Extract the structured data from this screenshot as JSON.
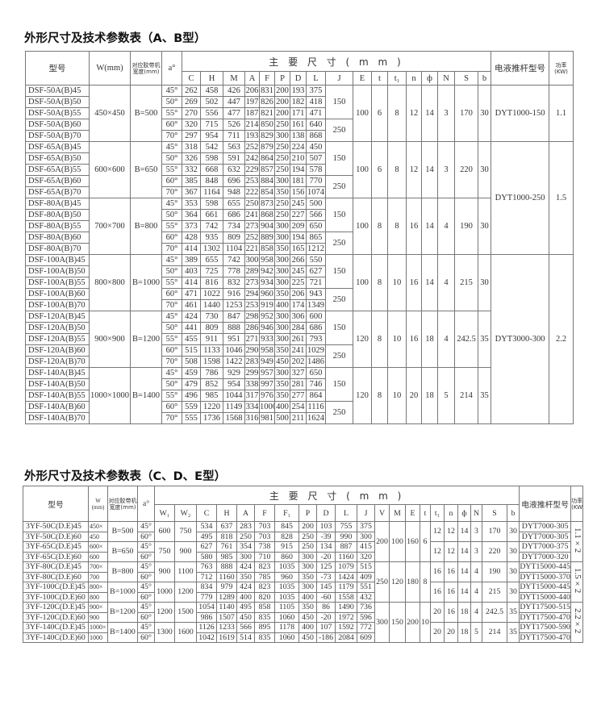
{
  "table1": {
    "title": "外形尺寸及技术参数表（A、B型）",
    "headers": {
      "model": "型号",
      "w": "W(mm)",
      "belt": "对应胶带机宽度(mm)",
      "angle": "a°",
      "main_dims": "主 要 尺 寸 ( m m )",
      "cols": [
        "C",
        "H",
        "M",
        "A",
        "F",
        "P",
        "D",
        "L",
        "J",
        "E",
        "t",
        "t₁",
        "n",
        "ф",
        "N",
        "S",
        "b"
      ],
      "pusher": "电液推杆型号",
      "power": "功率(KW)"
    },
    "groups": [
      {
        "w": "450×450",
        "belt": "B=500",
        "j": [
          "150",
          "250"
        ],
        "tail": [
          "100",
          "6",
          "8",
          "12",
          "14",
          "3",
          "170",
          "30"
        ],
        "rows": [
          [
            "DSF-50A(B)45",
            "45°",
            "262",
            "458",
            "426",
            "206",
            "831",
            "200",
            "193",
            "375"
          ],
          [
            "DSF-50A(B)50",
            "50°",
            "269",
            "502",
            "447",
            "197",
            "826",
            "200",
            "182",
            "418"
          ],
          [
            "DSF-50A(B)55",
            "55°",
            "270",
            "556",
            "477",
            "187",
            "821",
            "200",
            "171",
            "471"
          ],
          [
            "DSF-50A(B)60",
            "60°",
            "320",
            "715",
            "526",
            "214",
            "850",
            "250",
            "161",
            "640"
          ],
          [
            "DSF-50A(B)70",
            "70°",
            "297",
            "954",
            "711",
            "193",
            "829",
            "300",
            "138",
            "868"
          ]
        ]
      },
      {
        "w": "600×600",
        "belt": "B=650",
        "j": [
          "150",
          "250"
        ],
        "tail": [
          "100",
          "6",
          "8",
          "12",
          "14",
          "3",
          "220",
          "30"
        ],
        "rows": [
          [
            "DSF-65A(B)45",
            "45°",
            "318",
            "542",
            "563",
            "252",
            "879",
            "250",
            "224",
            "450"
          ],
          [
            "DSF-65A(B)50",
            "50°",
            "326",
            "598",
            "591",
            "242",
            "864",
            "250",
            "210",
            "507"
          ],
          [
            "DSF-65A(B)55",
            "55°",
            "332",
            "668",
            "632",
            "229",
            "857",
            "250",
            "194",
            "578"
          ],
          [
            "DSF-65A(B)60",
            "60°",
            "385",
            "848",
            "696",
            "253",
            "884",
            "300",
            "181",
            "770"
          ],
          [
            "DSF-65A(B)70",
            "70°",
            "367",
            "1164",
            "948",
            "222",
            "854",
            "350",
            "156",
            "1074"
          ]
        ]
      },
      {
        "w": "700×700",
        "belt": "B=800",
        "j": [
          "150",
          "250"
        ],
        "tail": [
          "100",
          "8",
          "8",
          "16",
          "14",
          "4",
          "190",
          "30"
        ],
        "rows": [
          [
            "DSF-80A(B)45",
            "45°",
            "353",
            "598",
            "655",
            "250",
            "873",
            "250",
            "245",
            "500"
          ],
          [
            "DSF-80A(B)50",
            "50°",
            "364",
            "661",
            "686",
            "241",
            "868",
            "250",
            "227",
            "566"
          ],
          [
            "DSF-80A(B)55",
            "55°",
            "373",
            "742",
            "734",
            "273",
            "904",
            "300",
            "209",
            "650"
          ],
          [
            "DSF-80A(B)60",
            "60°",
            "428",
            "935",
            "809",
            "252",
            "889",
            "300",
            "194",
            "865"
          ],
          [
            "DSF-80A(B)70",
            "70°",
            "414",
            "1302",
            "1104",
            "221",
            "858",
            "350",
            "165",
            "1212"
          ]
        ]
      },
      {
        "w": "800×800",
        "belt": "B=1000",
        "j": [
          "150",
          "250"
        ],
        "tail": [
          "100",
          "8",
          "10",
          "16",
          "14",
          "4",
          "215",
          "30"
        ],
        "rows": [
          [
            "DSF-100A(B)45",
            "45°",
            "389",
            "655",
            "742",
            "300",
            "958",
            "300",
            "266",
            "550"
          ],
          [
            "DSF-100A(B)50",
            "50°",
            "403",
            "725",
            "778",
            "289",
            "942",
            "300",
            "245",
            "627"
          ],
          [
            "DSF-100A(B)55",
            "55°",
            "414",
            "816",
            "832",
            "273",
            "934",
            "300",
            "225",
            "721"
          ],
          [
            "DSF-100A(B)60",
            "60°",
            "471",
            "1022",
            "916",
            "294",
            "960",
            "350",
            "206",
            "943"
          ],
          [
            "DSF-100A(B)70",
            "70°",
            "461",
            "1440",
            "1253",
            "253",
            "919",
            "400",
            "174",
            "1349"
          ]
        ]
      },
      {
        "w": "900×900",
        "belt": "B=1200",
        "j": [
          "150",
          "250"
        ],
        "tail": [
          "120",
          "8",
          "10",
          "16",
          "18",
          "4",
          "242.5",
          "35"
        ],
        "rows": [
          [
            "DSF-120A(B)45",
            "45°",
            "424",
            "730",
            "847",
            "298",
            "952",
            "300",
            "306",
            "600"
          ],
          [
            "DSF-120A(B)50",
            "50°",
            "441",
            "809",
            "888",
            "286",
            "946",
            "300",
            "284",
            "686"
          ],
          [
            "DSF-120A(B)55",
            "55°",
            "455",
            "911",
            "951",
            "271",
            "933",
            "300",
            "261",
            "793"
          ],
          [
            "DSF-120A(B)60",
            "60°",
            "515",
            "1133",
            "1046",
            "290",
            "958",
            "350",
            "241",
            "1029"
          ],
          [
            "DSF-120A(B)70",
            "70°",
            "508",
            "1598",
            "1422",
            "283",
            "949",
            "450",
            "202",
            "1486"
          ]
        ]
      },
      {
        "w": "1000×1000",
        "belt": "B=1400",
        "j": [
          "150",
          "250"
        ],
        "tail": [
          "120",
          "8",
          "10",
          "20",
          "18",
          "5",
          "214",
          "35"
        ],
        "rows": [
          [
            "DSF-140A(B)45",
            "45°",
            "459",
            "786",
            "929",
            "299",
            "957",
            "300",
            "327",
            "650"
          ],
          [
            "DSF-140A(B)50",
            "50°",
            "479",
            "852",
            "954",
            "338",
            "997",
            "350",
            "281",
            "746"
          ],
          [
            "DSF-140A(B)55",
            "55°",
            "496",
            "985",
            "1044",
            "317",
            "976",
            "350",
            "277",
            "864"
          ],
          [
            "DSF-140A(B)60",
            "60°",
            "559",
            "1220",
            "1149",
            "334",
            "1000",
            "400",
            "254",
            "1116"
          ],
          [
            "DSF-140A(B)70",
            "70°",
            "555",
            "1736",
            "1568",
            "316",
            "981",
            "500",
            "211",
            "1624"
          ]
        ]
      }
    ],
    "pushers": [
      {
        "model": "DYT1000-150",
        "power": "1.1",
        "groups": 1
      },
      {
        "model": "DYT1000-250",
        "power": "1.5",
        "groups": 2
      },
      {
        "model": "DYT3000-300",
        "power": "2.2",
        "groups": 3
      }
    ]
  },
  "table2": {
    "title": "外形尺寸及技术参数表（C、D、E型）",
    "headers": {
      "model": "型号",
      "w": "W (mm)",
      "belt": "对应胶带机宽度(mm)",
      "angle": "a°",
      "main_dims": "主 要 尺 寸 ( m m )",
      "cols": [
        "W₁",
        "W₂",
        "C",
        "H",
        "A",
        "F",
        "F₁",
        "P",
        "D",
        "L",
        "J",
        "V",
        "M",
        "E",
        "t",
        "t₁",
        "n",
        "ф",
        "N",
        "S",
        "b"
      ],
      "pusher": "电液推杆型号",
      "power": "功率(KW)"
    },
    "groups": [
      {
        "models": [
          "3YF-50C(D.E)45",
          "3YF-50C(D.E)60"
        ],
        "w": [
          "450×",
          "450"
        ],
        "belt": "B=500",
        "w1": "600",
        "w2": "750",
        "rows": [
          [
            "45°",
            "534",
            "637",
            "283",
            "703",
            "845",
            "200",
            "103",
            "755",
            "375"
          ],
          [
            "60°",
            "495",
            "818",
            "250",
            "703",
            "828",
            "250",
            "-39",
            "990",
            "300"
          ]
        ],
        "tail": [
          "12",
          "12",
          "14",
          "3",
          "170",
          "30"
        ],
        "pushers": [
          "DYT7000-305",
          "DYT7000-305"
        ]
      },
      {
        "models": [
          "3YF-65C(D.E)45",
          "3YF-65C(D.E)60"
        ],
        "w": [
          "600×",
          "600"
        ],
        "belt": "B=650",
        "w1": "750",
        "w2": "900",
        "rows": [
          [
            "45°",
            "627",
            "761",
            "354",
            "738",
            "915",
            "250",
            "134",
            "887",
            "415"
          ],
          [
            "60°",
            "580",
            "985",
            "300",
            "710",
            "860",
            "300",
            "-20",
            "1160",
            "320"
          ]
        ],
        "tail": [
          "12",
          "12",
          "14",
          "3",
          "220",
          "30"
        ],
        "pushers": [
          "DYT7000-375",
          "DYT7000-320"
        ]
      },
      {
        "models": [
          "3YF-80C(D.E)45",
          "3YF-80C(D.E)60"
        ],
        "w": [
          "700×",
          "700"
        ],
        "belt": "B=800",
        "w1": "900",
        "w2": "1100",
        "rows": [
          [
            "45°",
            "763",
            "888",
            "424",
            "823",
            "1035",
            "300",
            "125",
            "1079",
            "515"
          ],
          [
            "60°",
            "712",
            "1160",
            "350",
            "785",
            "960",
            "350",
            "-73",
            "1424",
            "409"
          ]
        ],
        "tail": [
          "16",
          "16",
          "14",
          "4",
          "190",
          "30"
        ],
        "pushers": [
          "DYT15000-445",
          "DYT15000-370"
        ]
      },
      {
        "models": [
          "3YF-100C(D.E)45",
          "3YF-100C(D.E)60"
        ],
        "w": [
          "800×",
          "800"
        ],
        "belt": "B=1000",
        "w1": "1000",
        "w2": "1200",
        "rows": [
          [
            "45°",
            "834",
            "979",
            "424",
            "823",
            "1035",
            "300",
            "145",
            "1179",
            "551"
          ],
          [
            "60°",
            "779",
            "1289",
            "400",
            "820",
            "1035",
            "400",
            "-60",
            "1558",
            "432"
          ]
        ],
        "tail": [
          "16",
          "16",
          "14",
          "4",
          "215",
          "30"
        ],
        "pushers": [
          "DYT15000-445",
          "DYT15000-440"
        ]
      },
      {
        "models": [
          "3YF-120C(D.E)45",
          "3YF-120C(D.E)60"
        ],
        "w": [
          "900×",
          "900"
        ],
        "belt": "B=1200",
        "w1": "1200",
        "w2": "1500",
        "rows": [
          [
            "45°",
            "1054",
            "1140",
            "495",
            "858",
            "1105",
            "350",
            "86",
            "1490",
            "736"
          ],
          [
            "60°",
            "986",
            "1507",
            "450",
            "835",
            "1060",
            "450",
            "-20",
            "1972",
            "596"
          ]
        ],
        "tail": [
          "20",
          "16",
          "18",
          "4",
          "242.5",
          "35"
        ],
        "pushers": [
          "DYT17500-515",
          "DYT17500-470"
        ]
      },
      {
        "models": [
          "3YF-140C(D.E)45",
          "3YF-140C(D.E)60"
        ],
        "w": [
          "1000×",
          "1000"
        ],
        "belt": "B=1400",
        "w1": "1300",
        "w2": "1600",
        "rows": [
          [
            "45°",
            "1126",
            "1233",
            "566",
            "895",
            "1178",
            "400",
            "107",
            "1592",
            "772"
          ],
          [
            "60°",
            "1042",
            "1619",
            "514",
            "835",
            "1060",
            "450",
            "-186",
            "2084",
            "609"
          ]
        ],
        "tail": [
          "20",
          "20",
          "18",
          "5",
          "214",
          "35"
        ],
        "pushers": [
          "DYT17500-590",
          "DYT17500-470"
        ]
      }
    ],
    "pairs": [
      {
        "vmet": [
          "200",
          "100",
          "160",
          "6"
        ],
        "power": "1.1×2"
      },
      {
        "vmet": [
          "250",
          "120",
          "180",
          "8"
        ],
        "power": "1.5×2"
      },
      {
        "vmet": [
          "300",
          "150",
          "200",
          "10"
        ],
        "power": "2.2×2"
      }
    ]
  }
}
